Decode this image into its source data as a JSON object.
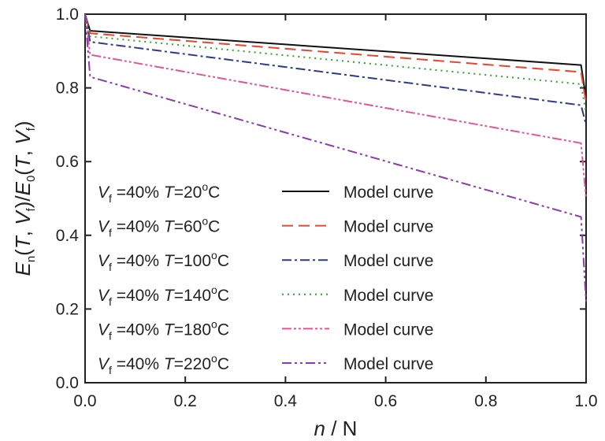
{
  "chart_data": {
    "type": "line",
    "xlabel": {
      "var": "n",
      "sep": " / ",
      "unit": "N"
    },
    "ylabel": {
      "E": "E",
      "n": "n",
      "T": "T",
      "V": "V",
      "f": "f",
      "zero": "0",
      "open": "(",
      "comma": ", ",
      "close": ")",
      "slash": "/"
    },
    "xlim": [
      0,
      1.0
    ],
    "ylim": [
      0,
      1.0
    ],
    "xticks": [
      "0.0",
      "0.2",
      "0.4",
      "0.6",
      "0.8",
      "1.0"
    ],
    "yticks": [
      "0.0",
      "0.2",
      "0.4",
      "0.6",
      "0.8",
      "1.0"
    ],
    "grid": false,
    "legend_position": "bottom-left",
    "series": [
      {
        "name": "Model curve",
        "legend": {
          "V": "V",
          "sub": "f",
          "vf": " =40% ",
          "T": "T",
          "t": "=20",
          "deg": "o",
          "unit": "C"
        },
        "color": "#111111",
        "dash": "",
        "x": [
          0,
          0.01,
          0.99,
          1.0
        ],
        "y": [
          1.0,
          0.955,
          0.862,
          0.77
        ]
      },
      {
        "name": "Model curve",
        "legend": {
          "V": "V",
          "sub": "f",
          "vf": " =40% ",
          "T": "T",
          "t": "=60",
          "deg": "o",
          "unit": "C"
        },
        "color": "#e8452c",
        "dash": "14 7",
        "x": [
          0,
          0.01,
          0.99,
          1.0
        ],
        "y": [
          1.0,
          0.948,
          0.843,
          0.76
        ]
      },
      {
        "name": "Model curve",
        "legend": {
          "V": "V",
          "sub": "f",
          "vf": " =40% ",
          "T": "T",
          "t": "=100",
          "deg": "o",
          "unit": "C"
        },
        "color": "#2d3a8c",
        "dash": "12 4 3 4",
        "x": [
          0,
          0.01,
          0.99,
          1.0
        ],
        "y": [
          1.0,
          0.925,
          0.753,
          0.7
        ]
      },
      {
        "name": "Model curve",
        "legend": {
          "V": "V",
          "sub": "f",
          "vf": " =40% ",
          "T": "T",
          "t": "=140",
          "deg": "o",
          "unit": "C"
        },
        "color": "#2aa52a",
        "dash": "2 5",
        "x": [
          0,
          0.01,
          0.99,
          1.0
        ],
        "y": [
          1.0,
          0.94,
          0.81,
          0.73
        ]
      },
      {
        "name": "Model curve",
        "legend": {
          "V": "V",
          "sub": "f",
          "vf": " =40% ",
          "T": "T",
          "t": "=180",
          "deg": "o",
          "unit": "C"
        },
        "color": "#e0559a",
        "dash": "12 3 3 3 3 3",
        "x": [
          0,
          0.01,
          0.99,
          1.0
        ],
        "y": [
          1.0,
          0.89,
          0.65,
          0.5
        ]
      },
      {
        "name": "Model curve",
        "legend": {
          "V": "V",
          "sub": "f",
          "vf": " =40% ",
          "T": "T",
          "t": "=220",
          "deg": "o",
          "unit": "C"
        },
        "color": "#8a3ca8",
        "dash": "12 4 3 4 3 4",
        "x": [
          0,
          0.01,
          0.99,
          1.0
        ],
        "y": [
          1.0,
          0.83,
          0.45,
          0.22
        ]
      }
    ]
  }
}
